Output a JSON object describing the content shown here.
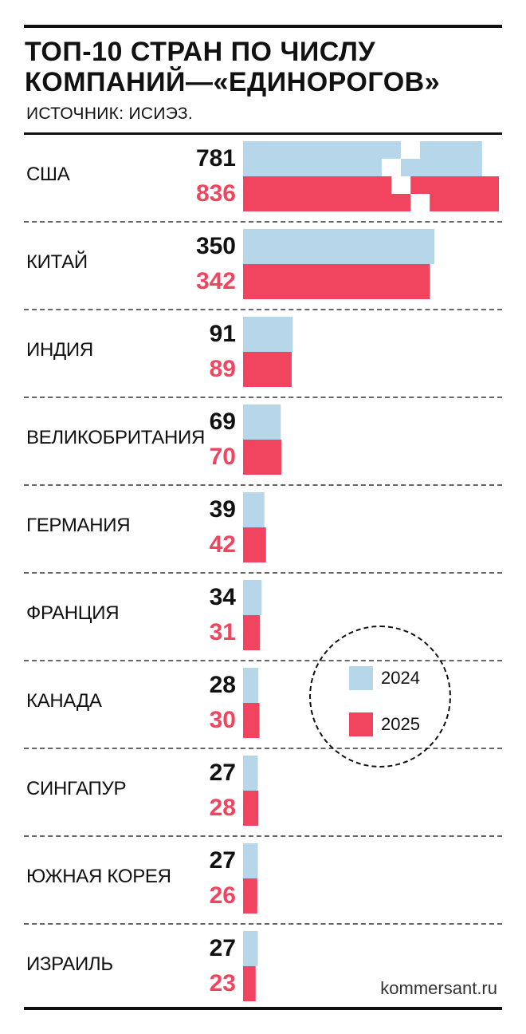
{
  "header": {
    "title": "ТОП-10 СТРАН ПО ЧИСЛУ\nКОМПАНИЙ—«ЕДИНОРОГОВ»",
    "source": "ИСТОЧНИК: ИСИЭЗ."
  },
  "footer": {
    "site": "kommersant.ru"
  },
  "colors": {
    "y2024": "#b6d7ea",
    "y2025": "#f1445f"
  },
  "chart_data": {
    "type": "bar",
    "orientation": "horizontal",
    "categories": [
      "США",
      "КИТАЙ",
      "ИНДИЯ",
      "ВЕЛИКОБРИТАНИЯ",
      "ГЕРМАНИЯ",
      "ФРАНЦИЯ",
      "КАНАДА",
      "СИНГАПУР",
      "ЮЖНАЯ КОРЕЯ",
      "ИЗРАИЛЬ"
    ],
    "series": [
      {
        "name": "2024",
        "values": [
          781,
          350,
          91,
          69,
          39,
          34,
          28,
          27,
          27,
          27
        ],
        "color": "#b6d7ea"
      },
      {
        "name": "2025",
        "values": [
          836,
          342,
          89,
          70,
          42,
          31,
          30,
          28,
          26,
          23
        ],
        "color": "#f1445f"
      }
    ],
    "value_labels": {
      "2024": [
        "781",
        "350",
        "91",
        "69",
        "39",
        "34",
        "28",
        "27",
        "27",
        "27"
      ],
      "2025": [
        "836",
        "342",
        "89",
        "70",
        "42",
        "31",
        "30",
        "28",
        "26",
        "23"
      ]
    },
    "scale_break": true,
    "legend": {
      "placement": "right",
      "entries": [
        "2024",
        "2025"
      ]
    }
  }
}
